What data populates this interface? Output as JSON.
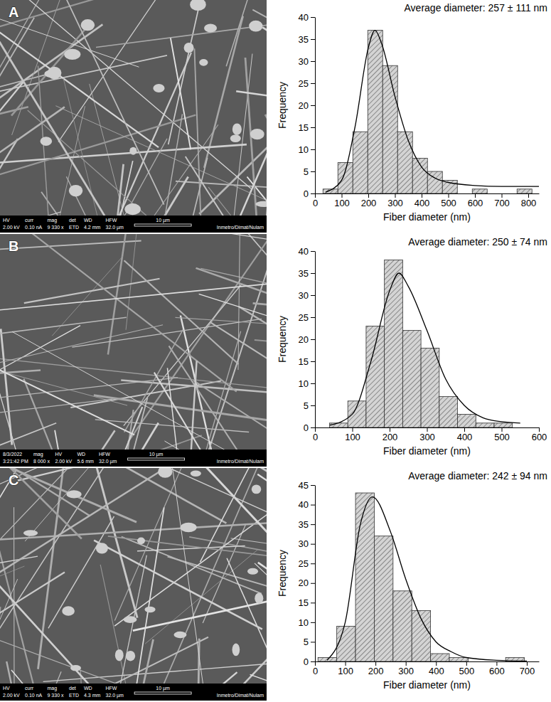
{
  "chart_data": [
    {
      "type": "histogram",
      "color": "#d4d4d4",
      "bins": [
        30,
        86,
        142,
        198,
        254,
        310,
        366,
        422,
        478,
        534,
        590,
        646,
        702,
        758,
        814
      ],
      "values": [
        1,
        7,
        14,
        37,
        29,
        14,
        8,
        5,
        3,
        0,
        1,
        0,
        0,
        1
      ],
      "xlim": [
        0,
        840
      ],
      "xticks": [
        0,
        100,
        200,
        300,
        400,
        500,
        600,
        700,
        800
      ],
      "ylim": [
        0,
        40
      ],
      "yticks": [
        0,
        5,
        10,
        15,
        20,
        25,
        30,
        35,
        40
      ],
      "x_label": "Fiber diameter (nm)",
      "y_label": "Frequency",
      "annotation": "Average diameter: 257 ± 111 nm",
      "fit": {
        "type": "line",
        "color": "#000000",
        "x": [
          40,
          100,
          150,
          200,
          225,
          250,
          300,
          350,
          400,
          450,
          500,
          600,
          700,
          840
        ],
        "values": [
          0.3,
          3,
          15,
          33,
          37,
          34,
          22,
          12,
          6,
          3.5,
          2.5,
          1.8,
          1.6,
          1.6
        ]
      }
    },
    {
      "type": "histogram",
      "color": "#d4d4d4",
      "bins": [
        39,
        88,
        137,
        186,
        235,
        284,
        333,
        382,
        431,
        480,
        529
      ],
      "values": [
        1,
        6,
        23,
        38,
        22,
        18,
        7,
        3,
        1,
        1
      ],
      "xlim": [
        0,
        600
      ],
      "xticks": [
        0,
        100,
        200,
        300,
        400,
        500,
        600
      ],
      "ylim": [
        0,
        40
      ],
      "yticks": [
        0,
        5,
        10,
        15,
        20,
        25,
        30,
        35,
        40
      ],
      "x_label": "Fiber diameter (nm)",
      "y_label": "Frequency",
      "annotation": "Average diameter: 250 ± 74 nm",
      "fit": {
        "type": "line",
        "color": "#000000",
        "x": [
          40,
          100,
          150,
          200,
          225,
          250,
          300,
          350,
          400,
          450,
          500,
          550
        ],
        "values": [
          0.5,
          3,
          15,
          31,
          35,
          32,
          22,
          11,
          5,
          2.2,
          1.3,
          1
        ]
      }
    },
    {
      "type": "histogram",
      "color": "#d4d4d4",
      "bins": [
        10,
        72,
        134,
        196,
        258,
        320,
        382,
        444,
        506,
        568,
        630,
        692
      ],
      "values": [
        1,
        9,
        43,
        32,
        18,
        13,
        2,
        1,
        0,
        0,
        1
      ],
      "xlim": [
        0,
        740
      ],
      "xticks": [
        0,
        100,
        200,
        300,
        400,
        500,
        600,
        700
      ],
      "ylim": [
        0,
        45
      ],
      "yticks": [
        0,
        5,
        10,
        15,
        20,
        25,
        30,
        35,
        40,
        45
      ],
      "x_label": "Fiber diameter (nm)",
      "y_label": "Frequency",
      "annotation": "Average diameter: 242 ± 94 nm",
      "fit": {
        "type": "line",
        "color": "#000000",
        "x": [
          40,
          100,
          150,
          190,
          250,
          300,
          350,
          400,
          450,
          500,
          600,
          700
        ],
        "values": [
          0.3,
          10,
          35,
          42,
          33,
          21,
          11,
          5,
          2.5,
          1,
          0.3,
          0.1
        ]
      }
    }
  ],
  "sem_images": [
    {
      "label": "A",
      "fields": [
        "HV",
        "curr",
        "mag",
        "det",
        "WD",
        "HFW"
      ],
      "values": [
        "2.00 kV",
        "0.10 nA",
        "9 330 x",
        "ETD",
        "4.2 mm",
        "32.0 µm"
      ],
      "scale_bar": "10 µm",
      "lab": "Inmetro/Dimat/Nulam"
    },
    {
      "label": "B",
      "fields": [
        "8/3/2022",
        "mag",
        "HV",
        "WD",
        "HFW"
      ],
      "values": [
        "3:21:42 PM",
        "8 000 x",
        "2.00 kV",
        "5.6 mm",
        "32.0 µm"
      ],
      "scale_bar": "10 µm",
      "lab": "Inmetro/Dimat/Nulam"
    },
    {
      "label": "C",
      "fields": [
        "HV",
        "curr",
        "mag",
        "det",
        "WD",
        "HFW"
      ],
      "values": [
        "2.00 kV",
        "0.10 nA",
        "9 330 x",
        "ETD",
        "4.3 mm",
        "32.0 µm"
      ],
      "scale_bar": "10 µm",
      "lab": "Inmetro/Dimat/Nulam"
    }
  ]
}
